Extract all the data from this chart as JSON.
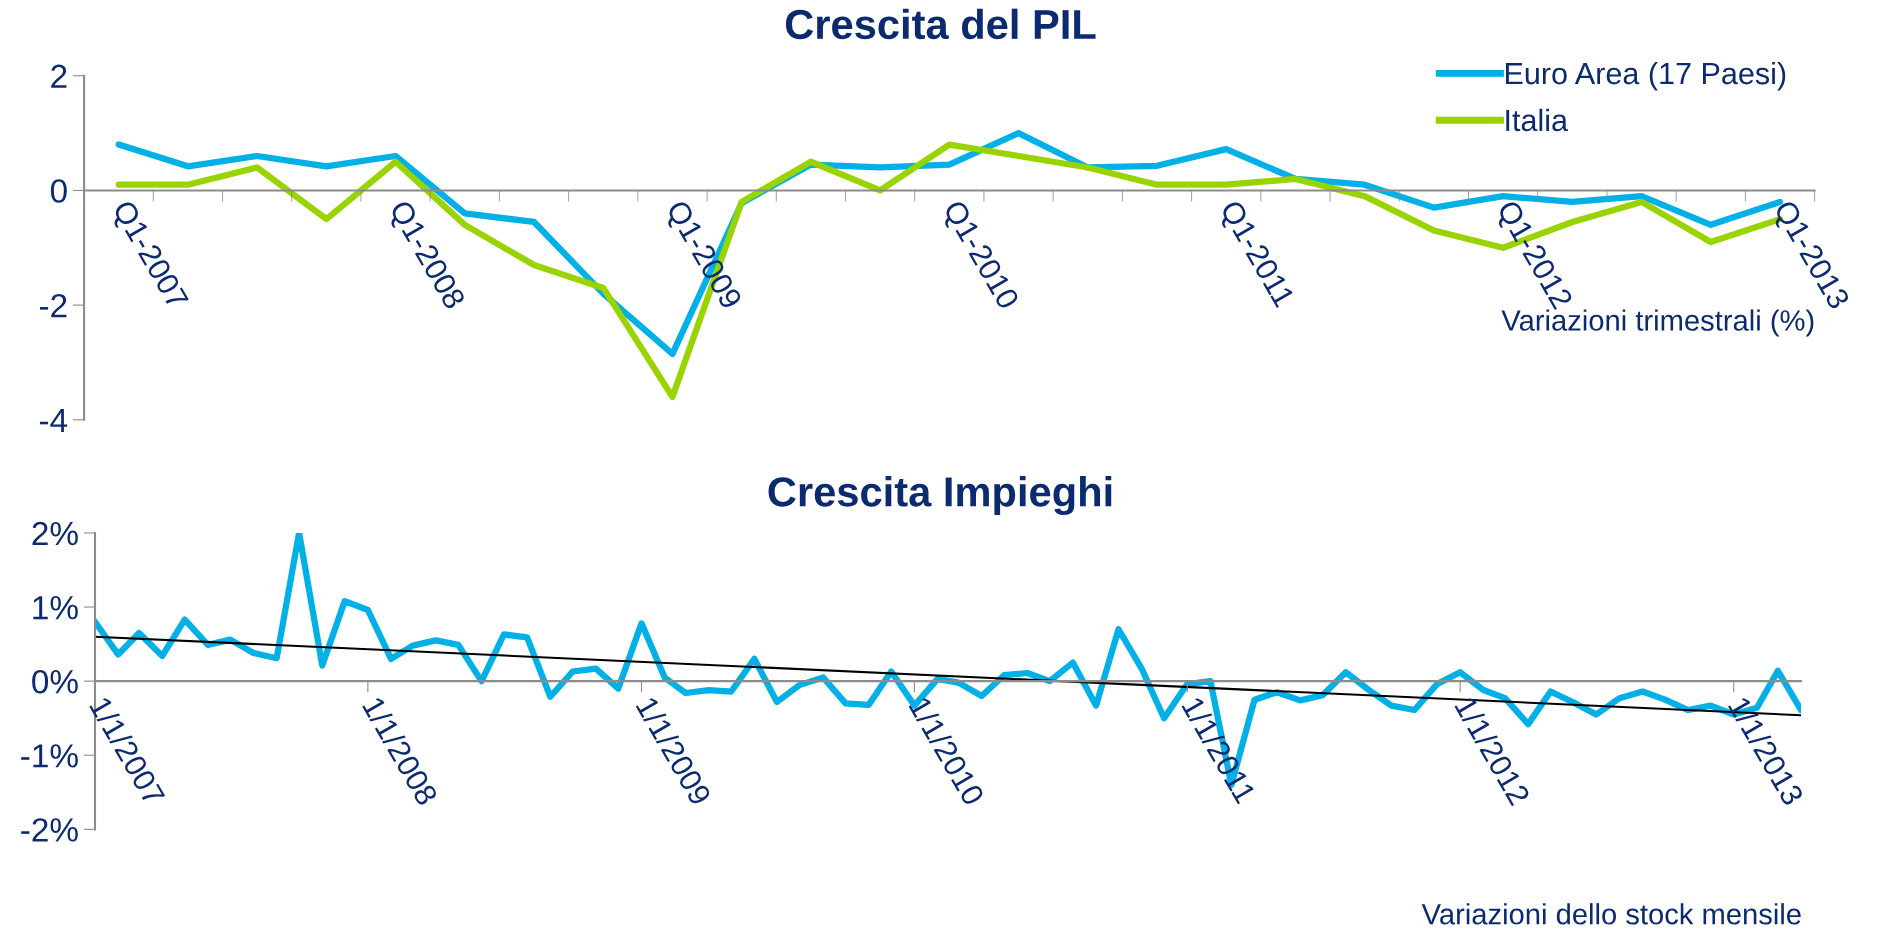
{
  "chart_data": [
    {
      "type": "line",
      "title": "Crescita del PIL",
      "categories": [
        "Q1-2007",
        null,
        null,
        null,
        "Q1-2008",
        null,
        null,
        null,
        "Q1-2009",
        null,
        null,
        null,
        "Q1-2010",
        null,
        null,
        null,
        "Q1-2011",
        null,
        null,
        null,
        "Q1-2012",
        null,
        null,
        null,
        "Q1-2013"
      ],
      "series": [
        {
          "name": "Euro Area (17 Paesi)",
          "color": "#00b0e6",
          "values": [
            0.8,
            0.42,
            0.6,
            0.42,
            0.6,
            -0.4,
            -0.55,
            -1.8,
            -2.85,
            -0.22,
            0.45,
            0.4,
            0.45,
            1.0,
            0.4,
            0.43,
            0.72,
            0.2,
            0.1,
            -0.3,
            -0.1,
            -0.2,
            -0.1,
            -0.6,
            -0.2
          ]
        },
        {
          "name": "Italia",
          "color": "#99d300",
          "values": [
            0.1,
            0.1,
            0.4,
            -0.5,
            0.5,
            -0.6,
            -1.3,
            -1.7,
            -3.6,
            -0.2,
            0.5,
            0.0,
            0.8,
            0.6,
            0.4,
            0.1,
            0.1,
            0.2,
            -0.1,
            -0.7,
            -1.0,
            -0.55,
            -0.2,
            -0.9,
            -0.5
          ]
        }
      ],
      "ylim": [
        -4,
        2
      ],
      "yticks": [
        -4,
        -2,
        0,
        2
      ],
      "legend": "top right",
      "grid": false,
      "marker": "none",
      "line_style": "solid",
      "annotations": [
        "Variazioni trimestrali (%)"
      ]
    },
    {
      "type": "line",
      "title": "Crescita Impieghi",
      "x": [
        "2007-01",
        "2007-02",
        "2007-03",
        "2007-04",
        "2007-05",
        "2007-06",
        "2007-07",
        "2007-08",
        "2007-09",
        "2007-10",
        "2007-11",
        "2007-12",
        "2008-01",
        "2008-02",
        "2008-03",
        "2008-04",
        "2008-05",
        "2008-06",
        "2008-07",
        "2008-08",
        "2008-09",
        "2008-10",
        "2008-11",
        "2008-12",
        "2009-01",
        "2009-02",
        "2009-03",
        "2009-04",
        "2009-05",
        "2009-06",
        "2009-07",
        "2009-08",
        "2009-09",
        "2009-10",
        "2009-11",
        "2009-12",
        "2010-01",
        "2010-02",
        "2010-03",
        "2010-04",
        "2010-05",
        "2010-06",
        "2010-07",
        "2010-08",
        "2010-09",
        "2010-10",
        "2010-11",
        "2010-12",
        "2011-01",
        "2011-02",
        "2011-03",
        "2011-04",
        "2011-05",
        "2011-06",
        "2011-07",
        "2011-08",
        "2011-09",
        "2011-10",
        "2011-11",
        "2011-12",
        "2012-01",
        "2012-02",
        "2012-03",
        "2012-04",
        "2012-05",
        "2012-06",
        "2012-07",
        "2012-08",
        "2012-09",
        "2012-10",
        "2012-11",
        "2012-12",
        "2013-01",
        "2013-02",
        "2013-03",
        "2013-04"
      ],
      "series": [
        {
          "color": "#00b0e6",
          "values": [
            0.8,
            0.36,
            0.65,
            0.34,
            0.83,
            0.49,
            0.56,
            0.38,
            0.31,
            2.0,
            0.21,
            1.08,
            0.96,
            0.3,
            0.48,
            0.55,
            0.49,
            0.0,
            0.63,
            0.59,
            -0.21,
            0.13,
            0.17,
            -0.1,
            0.78,
            0.05,
            -0.16,
            -0.12,
            -0.14,
            0.3,
            -0.28,
            -0.05,
            0.05,
            -0.3,
            -0.32,
            0.13,
            -0.33,
            0.03,
            -0.02,
            -0.2,
            0.08,
            0.11,
            0.0,
            0.25,
            -0.33,
            0.7,
            0.17,
            -0.5,
            -0.04,
            0.0,
            -1.4,
            -0.25,
            -0.15,
            -0.26,
            -0.19,
            0.12,
            -0.12,
            -0.33,
            -0.39,
            -0.04,
            0.12,
            -0.12,
            -0.23,
            -0.58,
            -0.14,
            -0.29,
            -0.45,
            -0.23,
            -0.14,
            -0.25,
            -0.39,
            -0.33,
            -0.45,
            -0.36,
            0.14,
            -0.39
          ]
        },
        {
          "type": "line",
          "color": "#000000",
          "x": [
            "2007-01",
            "2013-04"
          ],
          "values": [
            0.6,
            -0.46
          ]
        }
      ],
      "xlim": [
        "2007-01",
        "2013-04"
      ],
      "xticks": [
        {
          "value": "2007-01-01",
          "label": "1/1/2007"
        },
        {
          "value": "2008-01-01",
          "label": "1/1/2008"
        },
        {
          "value": "2009-01-01",
          "label": "1/1/2009"
        },
        {
          "value": "2010-01-01",
          "label": "1/1/2010"
        },
        {
          "value": "2011-01-01",
          "label": "1/1/2011"
        },
        {
          "value": "2012-01-01",
          "label": "1/1/2012"
        },
        {
          "value": "2013-01-01",
          "label": "1/1/2013"
        }
      ],
      "ylim": [
        -2,
        2
      ],
      "yticks": [
        {
          "value": -2,
          "label": "-2%"
        },
        {
          "value": -1,
          "label": "-1%"
        },
        {
          "value": 0,
          "label": "0%"
        },
        {
          "value": 1,
          "label": "1%"
        },
        {
          "value": 2,
          "label": "2%"
        }
      ],
      "legend": false,
      "grid": false,
      "marker": "none",
      "line_style": "solid",
      "annotations": [
        "Variazioni dello stock mensile"
      ]
    }
  ]
}
